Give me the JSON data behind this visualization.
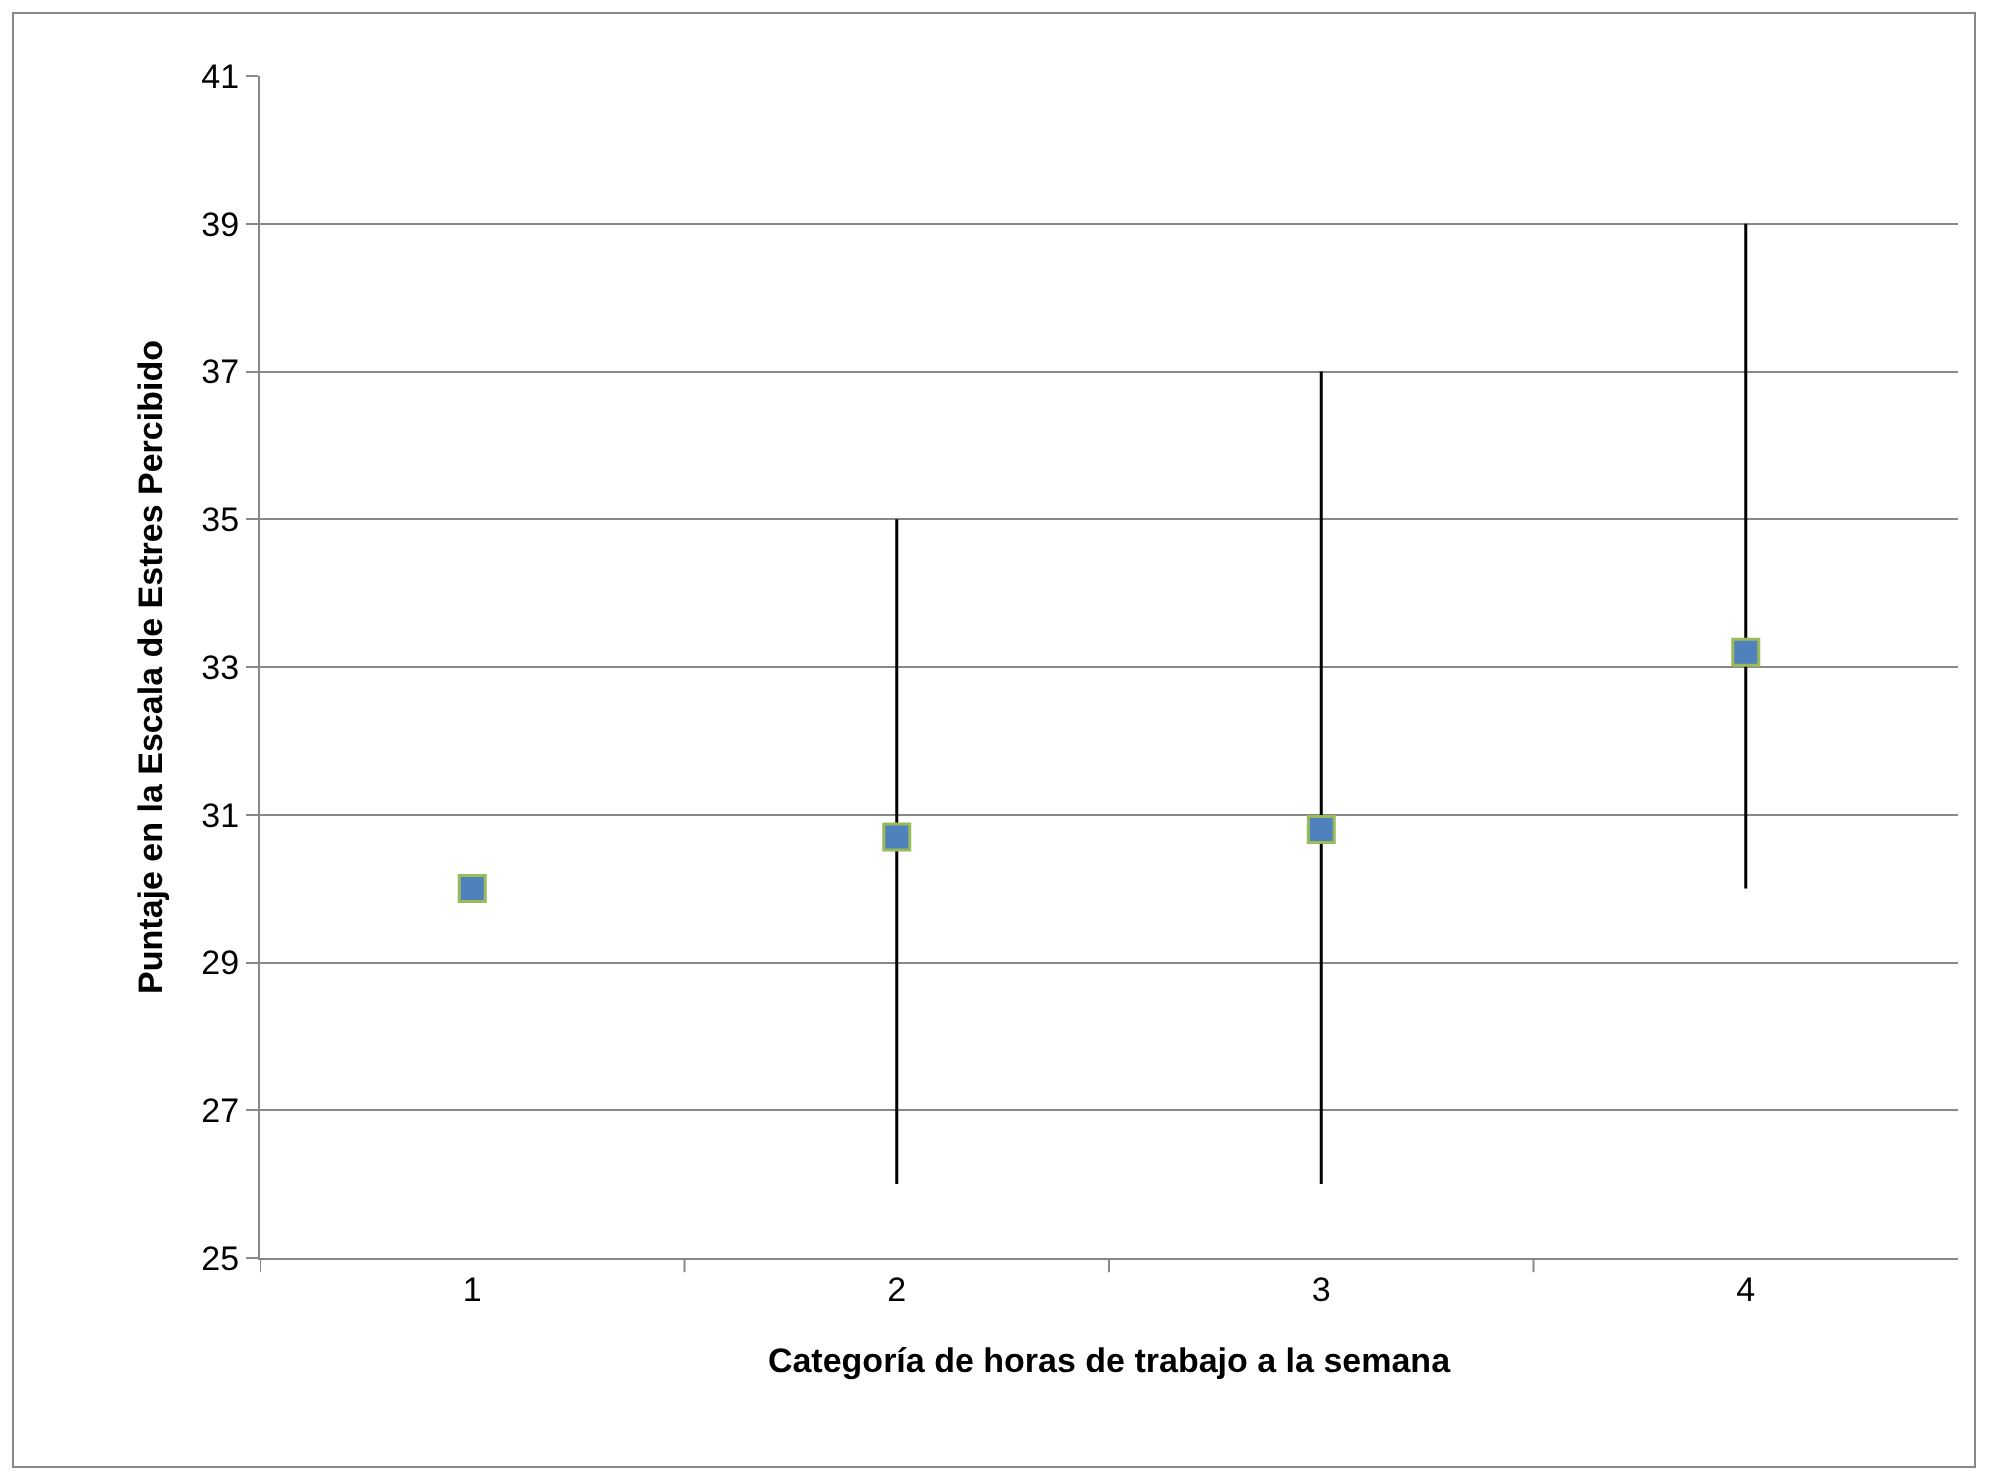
{
  "chart_data": {
    "type": "scatter",
    "xlabel": "Categoría de horas de trabajo a la semana",
    "ylabel": "Puntaje en la Escala de Estres Percibido",
    "categories": [
      "1",
      "2",
      "3",
      "4"
    ],
    "series": [
      {
        "color": "#4f81bd",
        "values": [
          30.0,
          30.7,
          30.8,
          33.2
        ],
        "errors": [
          null,
          [
            26,
            35
          ],
          [
            26,
            37
          ],
          [
            30,
            39
          ]
        ]
      }
    ],
    "ylim": [
      25,
      41
    ],
    "yticks": [
      25,
      27,
      29,
      31,
      33,
      35,
      37,
      39,
      41
    ],
    "grid": "y",
    "marker": "square"
  }
}
